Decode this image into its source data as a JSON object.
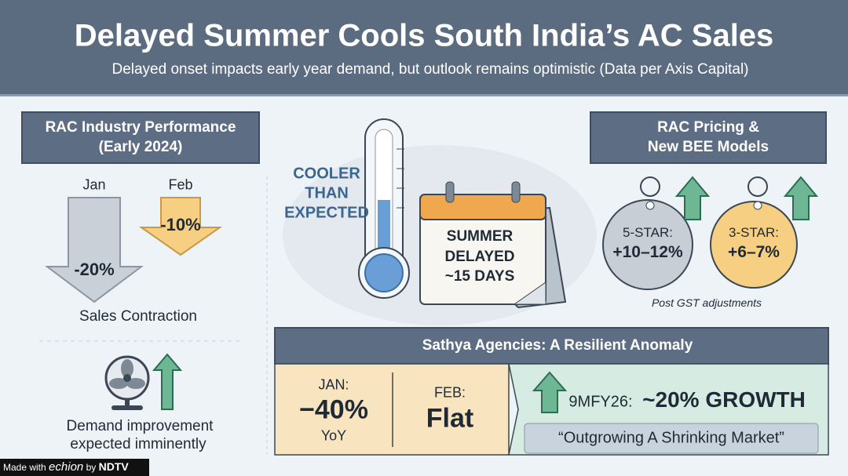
{
  "header": {
    "title": "Delayed Summer Cools South India’s AC Sales",
    "subtitle": "Delayed onset impacts early year demand, but outlook remains optimistic (Data per Axis Capital)"
  },
  "industry": {
    "title": [
      "RAC Industry Performance",
      "(Early 2024)"
    ],
    "months": [
      {
        "label": "Jan",
        "change": "-20%"
      },
      {
        "label": "Feb",
        "change": "-10%"
      }
    ],
    "caption": "Sales Contraction",
    "outlook": [
      "Demand improvement",
      "expected imminently"
    ]
  },
  "center": {
    "callout": [
      "COOLER",
      "THAN",
      "EXPECTED"
    ],
    "calendar": [
      "SUMMER",
      "DELAYED",
      "~15 DAYS"
    ]
  },
  "pricing": {
    "title": [
      "RAC Pricing &",
      "New BEE Models"
    ],
    "tags": [
      {
        "label": "5-STAR:",
        "change": "+10–12%"
      },
      {
        "label": "3-STAR:",
        "change": "+6–7%"
      }
    ],
    "note": "Post GST adjustments"
  },
  "anomaly": {
    "title": "Sathya Agencies: A Resilient Anomaly",
    "jan": {
      "label": "JAN:",
      "value": "−40%",
      "unit": "YoY"
    },
    "feb": {
      "label": "FEB:",
      "value": "Flat"
    },
    "outlook": {
      "label": "9MFY26:",
      "value": "~20% GROWTH"
    },
    "quote": "“Outgrowing A Shrinking Market”"
  },
  "footer": {
    "made_with": "Made with",
    "brand": "echion",
    "by": "by",
    "partner": "NDTV"
  }
}
